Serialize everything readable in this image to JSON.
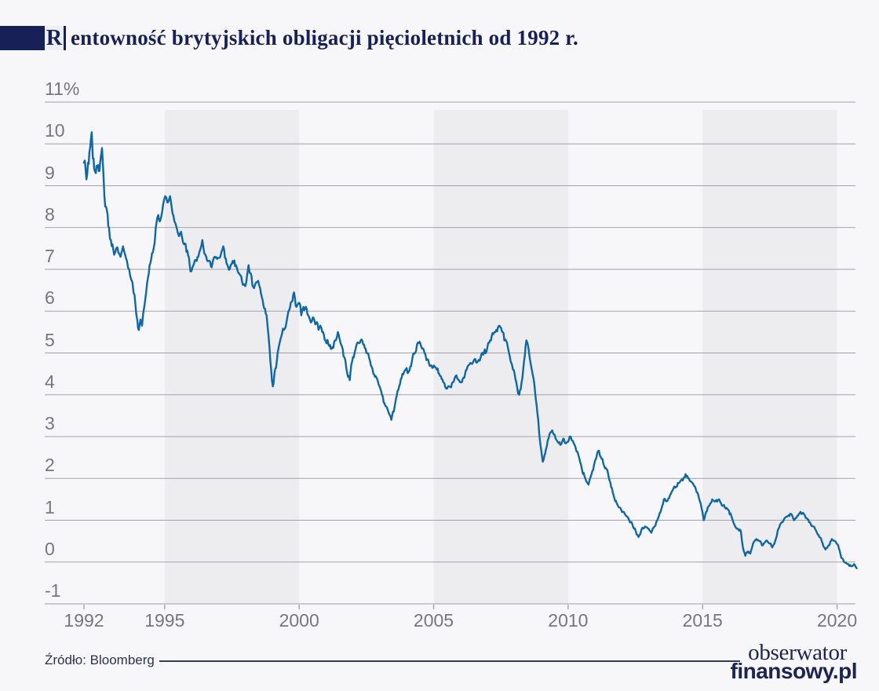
{
  "page": {
    "title_initial": "R",
    "title_rest": "entowność brytyjskich obligacji pięcioletnich od 1992 r.",
    "source_label": "Źródło: Bloomberg",
    "logo_line1": "obserwator",
    "logo_line2": "finansowy.pl"
  },
  "colors": {
    "background": "#f7f7f9",
    "accent_navy": "#172057",
    "line_blue": "#0e67a6",
    "grid_gray": "#a2a2a8",
    "label_gray": "#76777c",
    "band_gray": "#ededf0",
    "footer_navy": "#2b3156"
  },
  "chart_data": {
    "type": "line",
    "title": "Rentowność brytyjskich obligacji pięcioletnich od 1992 r.",
    "series_name": "Rentowność brytyjskich obligacji 5-letnich",
    "unit": "%",
    "x_range": [
      1992,
      2020.75
    ],
    "ylim": [
      -1,
      11
    ],
    "grid": true,
    "y_ticks": [
      {
        "label": "11%",
        "value": 11
      },
      {
        "label": "10",
        "value": 10
      },
      {
        "label": "9",
        "value": 9
      },
      {
        "label": "8",
        "value": 8
      },
      {
        "label": "7",
        "value": 7
      },
      {
        "label": "6",
        "value": 6
      },
      {
        "label": "5",
        "value": 5
      },
      {
        "label": "4",
        "value": 4
      },
      {
        "label": "3",
        "value": 3
      },
      {
        "label": "2",
        "value": 2
      },
      {
        "label": "1",
        "value": 1
      },
      {
        "label": "0",
        "value": 0
      },
      {
        "label": "-1",
        "value": -1
      }
    ],
    "x_ticks": [
      {
        "label": "1992",
        "value": 1992
      },
      {
        "label": "1995",
        "value": 1995
      },
      {
        "label": "2000",
        "value": 2000
      },
      {
        "label": "2005",
        "value": 2005
      },
      {
        "label": "2010",
        "value": 2010
      },
      {
        "label": "2015",
        "value": 2015
      },
      {
        "label": "2020",
        "value": 2020
      }
    ],
    "shaded_bands_years": [
      [
        1995,
        2000
      ],
      [
        2005,
        2010
      ],
      [
        2015,
        2020
      ]
    ],
    "points": [
      [
        1992.0,
        9.55
      ],
      [
        1992.06,
        9.4
      ],
      [
        1992.09,
        9.15
      ],
      [
        1992.15,
        9.55
      ],
      [
        1992.2,
        9.8
      ],
      [
        1992.29,
        10.28
      ],
      [
        1992.33,
        9.65
      ],
      [
        1992.38,
        9.4
      ],
      [
        1992.44,
        9.3
      ],
      [
        1992.5,
        9.45
      ],
      [
        1992.55,
        9.35
      ],
      [
        1992.6,
        9.55
      ],
      [
        1992.67,
        9.9
      ],
      [
        1992.71,
        9.45
      ],
      [
        1992.73,
        9.2
      ],
      [
        1992.76,
        8.75
      ],
      [
        1992.79,
        8.5
      ],
      [
        1992.84,
        8.45
      ],
      [
        1992.88,
        8.3
      ],
      [
        1992.93,
        8.0
      ],
      [
        1993.0,
        7.7
      ],
      [
        1993.06,
        7.6
      ],
      [
        1993.12,
        7.35
      ],
      [
        1993.2,
        7.5
      ],
      [
        1993.28,
        7.4
      ],
      [
        1993.36,
        7.3
      ],
      [
        1993.45,
        7.55
      ],
      [
        1993.53,
        7.35
      ],
      [
        1993.6,
        7.2
      ],
      [
        1993.68,
        7.0
      ],
      [
        1993.76,
        6.75
      ],
      [
        1993.84,
        6.45
      ],
      [
        1993.92,
        6.1
      ],
      [
        1993.98,
        5.8
      ],
      [
        1994.04,
        5.55
      ],
      [
        1994.1,
        5.8
      ],
      [
        1994.16,
        5.65
      ],
      [
        1994.24,
        6.1
      ],
      [
        1994.32,
        6.5
      ],
      [
        1994.41,
        6.9
      ],
      [
        1994.5,
        7.25
      ],
      [
        1994.59,
        7.5
      ],
      [
        1994.67,
        8.0
      ],
      [
        1994.76,
        8.3
      ],
      [
        1994.85,
        8.2
      ],
      [
        1994.94,
        8.55
      ],
      [
        1995.02,
        8.75
      ],
      [
        1995.1,
        8.6
      ],
      [
        1995.2,
        8.75
      ],
      [
        1995.29,
        8.35
      ],
      [
        1995.4,
        8.1
      ],
      [
        1995.5,
        7.85
      ],
      [
        1995.61,
        7.9
      ],
      [
        1995.72,
        7.6
      ],
      [
        1995.84,
        7.45
      ],
      [
        1995.96,
        6.95
      ],
      [
        1996.07,
        7.1
      ],
      [
        1996.19,
        7.2
      ],
      [
        1996.31,
        7.45
      ],
      [
        1996.4,
        7.7
      ],
      [
        1996.51,
        7.35
      ],
      [
        1996.63,
        7.2
      ],
      [
        1996.75,
        7.05
      ],
      [
        1996.86,
        7.3
      ],
      [
        1996.95,
        7.25
      ],
      [
        1997.07,
        7.3
      ],
      [
        1997.18,
        7.55
      ],
      [
        1997.3,
        7.15
      ],
      [
        1997.42,
        7.0
      ],
      [
        1997.53,
        7.2
      ],
      [
        1997.65,
        7.1
      ],
      [
        1997.77,
        6.9
      ],
      [
        1997.88,
        6.7
      ],
      [
        1998.0,
        6.6
      ],
      [
        1998.12,
        7.1
      ],
      [
        1998.2,
        6.9
      ],
      [
        1998.32,
        6.55
      ],
      [
        1998.44,
        6.7
      ],
      [
        1998.55,
        6.55
      ],
      [
        1998.67,
        6.15
      ],
      [
        1998.79,
        5.9
      ],
      [
        1998.9,
        5.1
      ],
      [
        1998.96,
        4.6
      ],
      [
        1999.02,
        4.2
      ],
      [
        1999.08,
        4.5
      ],
      [
        1999.17,
        4.8
      ],
      [
        1999.26,
        5.2
      ],
      [
        1999.34,
        5.4
      ],
      [
        1999.43,
        5.55
      ],
      [
        1999.52,
        5.7
      ],
      [
        1999.6,
        6.0
      ],
      [
        1999.69,
        6.2
      ],
      [
        1999.81,
        6.45
      ],
      [
        1999.9,
        6.1
      ],
      [
        2000.0,
        6.2
      ],
      [
        2000.08,
        5.9
      ],
      [
        2000.16,
        6.1
      ],
      [
        2000.28,
        6.05
      ],
      [
        2000.4,
        5.8
      ],
      [
        2000.51,
        5.85
      ],
      [
        2000.63,
        5.7
      ],
      [
        2000.75,
        5.6
      ],
      [
        2000.86,
        5.5
      ],
      [
        2000.98,
        5.3
      ],
      [
        2001.09,
        5.2
      ],
      [
        2001.21,
        5.1
      ],
      [
        2001.33,
        5.3
      ],
      [
        2001.44,
        5.5
      ],
      [
        2001.56,
        5.2
      ],
      [
        2001.68,
        4.9
      ],
      [
        2001.79,
        4.5
      ],
      [
        2001.88,
        4.35
      ],
      [
        2001.97,
        4.8
      ],
      [
        2002.06,
        5.0
      ],
      [
        2002.17,
        5.25
      ],
      [
        2002.29,
        5.3
      ],
      [
        2002.41,
        5.2
      ],
      [
        2002.53,
        5.0
      ],
      [
        2002.64,
        4.8
      ],
      [
        2002.76,
        4.5
      ],
      [
        2002.88,
        4.4
      ],
      [
        2002.99,
        4.2
      ],
      [
        2003.08,
        4.0
      ],
      [
        2003.17,
        3.8
      ],
      [
        2003.26,
        3.7
      ],
      [
        2003.34,
        3.55
      ],
      [
        2003.43,
        3.4
      ],
      [
        2003.52,
        3.6
      ],
      [
        2003.6,
        3.9
      ],
      [
        2003.72,
        4.2
      ],
      [
        2003.84,
        4.5
      ],
      [
        2003.96,
        4.6
      ],
      [
        2004.07,
        4.55
      ],
      [
        2004.19,
        4.8
      ],
      [
        2004.31,
        5.0
      ],
      [
        2004.42,
        5.25
      ],
      [
        2004.54,
        5.15
      ],
      [
        2004.66,
        5.0
      ],
      [
        2004.77,
        4.85
      ],
      [
        2004.89,
        4.7
      ],
      [
        2005.01,
        4.7
      ],
      [
        2005.12,
        4.6
      ],
      [
        2005.24,
        4.45
      ],
      [
        2005.36,
        4.3
      ],
      [
        2005.47,
        4.15
      ],
      [
        2005.59,
        4.2
      ],
      [
        2005.71,
        4.3
      ],
      [
        2005.82,
        4.45
      ],
      [
        2005.94,
        4.35
      ],
      [
        2006.05,
        4.3
      ],
      [
        2006.17,
        4.5
      ],
      [
        2006.29,
        4.7
      ],
      [
        2006.4,
        4.75
      ],
      [
        2006.52,
        4.85
      ],
      [
        2006.64,
        4.8
      ],
      [
        2006.75,
        4.9
      ],
      [
        2006.87,
        5.0
      ],
      [
        2006.99,
        5.1
      ],
      [
        2007.1,
        5.3
      ],
      [
        2007.22,
        5.45
      ],
      [
        2007.33,
        5.55
      ],
      [
        2007.45,
        5.65
      ],
      [
        2007.57,
        5.5
      ],
      [
        2007.69,
        5.3
      ],
      [
        2007.8,
        5.0
      ],
      [
        2007.92,
        4.7
      ],
      [
        2008.01,
        4.5
      ],
      [
        2008.1,
        4.2
      ],
      [
        2008.18,
        4.0
      ],
      [
        2008.27,
        4.3
      ],
      [
        2008.36,
        4.8
      ],
      [
        2008.45,
        5.3
      ],
      [
        2008.53,
        5.1
      ],
      [
        2008.62,
        4.7
      ],
      [
        2008.71,
        4.4
      ],
      [
        2008.8,
        3.9
      ],
      [
        2008.89,
        3.4
      ],
      [
        2008.97,
        2.8
      ],
      [
        2009.06,
        2.4
      ],
      [
        2009.15,
        2.6
      ],
      [
        2009.24,
        2.9
      ],
      [
        2009.35,
        3.1
      ],
      [
        2009.47,
        3.05
      ],
      [
        2009.59,
        2.9
      ],
      [
        2009.71,
        2.8
      ],
      [
        2009.82,
        2.95
      ],
      [
        2009.94,
        2.85
      ],
      [
        2010.06,
        3.0
      ],
      [
        2010.17,
        2.9
      ],
      [
        2010.29,
        2.7
      ],
      [
        2010.41,
        2.5
      ],
      [
        2010.52,
        2.2
      ],
      [
        2010.64,
        2.0
      ],
      [
        2010.76,
        1.85
      ],
      [
        2010.87,
        2.1
      ],
      [
        2010.99,
        2.4
      ],
      [
        2011.11,
        2.65
      ],
      [
        2011.22,
        2.5
      ],
      [
        2011.34,
        2.3
      ],
      [
        2011.46,
        2.2
      ],
      [
        2011.57,
        1.9
      ],
      [
        2011.69,
        1.6
      ],
      [
        2011.81,
        1.4
      ],
      [
        2011.92,
        1.3
      ],
      [
        2012.04,
        1.2
      ],
      [
        2012.16,
        1.1
      ],
      [
        2012.27,
        1.0
      ],
      [
        2012.39,
        0.9
      ],
      [
        2012.51,
        0.75
      ],
      [
        2012.62,
        0.6
      ],
      [
        2012.74,
        0.8
      ],
      [
        2012.86,
        0.85
      ],
      [
        2012.97,
        0.8
      ],
      [
        2013.09,
        0.7
      ],
      [
        2013.21,
        0.85
      ],
      [
        2013.32,
        1.0
      ],
      [
        2013.44,
        1.2
      ],
      [
        2013.56,
        1.5
      ],
      [
        2013.67,
        1.45
      ],
      [
        2013.79,
        1.6
      ],
      [
        2013.91,
        1.75
      ],
      [
        2014.02,
        1.8
      ],
      [
        2014.14,
        1.9
      ],
      [
        2014.26,
        1.95
      ],
      [
        2014.37,
        2.1
      ],
      [
        2014.49,
        2.0
      ],
      [
        2014.61,
        1.9
      ],
      [
        2014.72,
        1.8
      ],
      [
        2014.84,
        1.6
      ],
      [
        2014.96,
        1.3
      ],
      [
        2015.04,
        1.0
      ],
      [
        2015.13,
        1.2
      ],
      [
        2015.25,
        1.35
      ],
      [
        2015.36,
        1.5
      ],
      [
        2015.48,
        1.45
      ],
      [
        2015.6,
        1.5
      ],
      [
        2015.72,
        1.35
      ],
      [
        2015.83,
        1.3
      ],
      [
        2015.95,
        1.25
      ],
      [
        2016.07,
        1.1
      ],
      [
        2016.18,
        0.9
      ],
      [
        2016.3,
        0.8
      ],
      [
        2016.42,
        0.75
      ],
      [
        2016.5,
        0.35
      ],
      [
        2016.59,
        0.15
      ],
      [
        2016.68,
        0.25
      ],
      [
        2016.77,
        0.2
      ],
      [
        2016.88,
        0.45
      ],
      [
        2017.0,
        0.55
      ],
      [
        2017.12,
        0.5
      ],
      [
        2017.24,
        0.4
      ],
      [
        2017.35,
        0.5
      ],
      [
        2017.47,
        0.45
      ],
      [
        2017.59,
        0.35
      ],
      [
        2017.7,
        0.5
      ],
      [
        2017.82,
        0.8
      ],
      [
        2017.94,
        0.95
      ],
      [
        2018.05,
        1.05
      ],
      [
        2018.17,
        1.1
      ],
      [
        2018.29,
        1.15
      ],
      [
        2018.4,
        1.0
      ],
      [
        2018.52,
        1.1
      ],
      [
        2018.64,
        1.2
      ],
      [
        2018.76,
        1.15
      ],
      [
        2018.87,
        1.05
      ],
      [
        2018.99,
        0.95
      ],
      [
        2019.11,
        0.85
      ],
      [
        2019.22,
        0.75
      ],
      [
        2019.34,
        0.6
      ],
      [
        2019.46,
        0.45
      ],
      [
        2019.57,
        0.3
      ],
      [
        2019.69,
        0.4
      ],
      [
        2019.81,
        0.55
      ],
      [
        2019.92,
        0.5
      ],
      [
        2020.04,
        0.4
      ],
      [
        2020.16,
        0.1
      ],
      [
        2020.28,
        0.0
      ],
      [
        2020.4,
        -0.05
      ],
      [
        2020.52,
        -0.1
      ],
      [
        2020.63,
        -0.05
      ],
      [
        2020.73,
        -0.15
      ]
    ]
  }
}
